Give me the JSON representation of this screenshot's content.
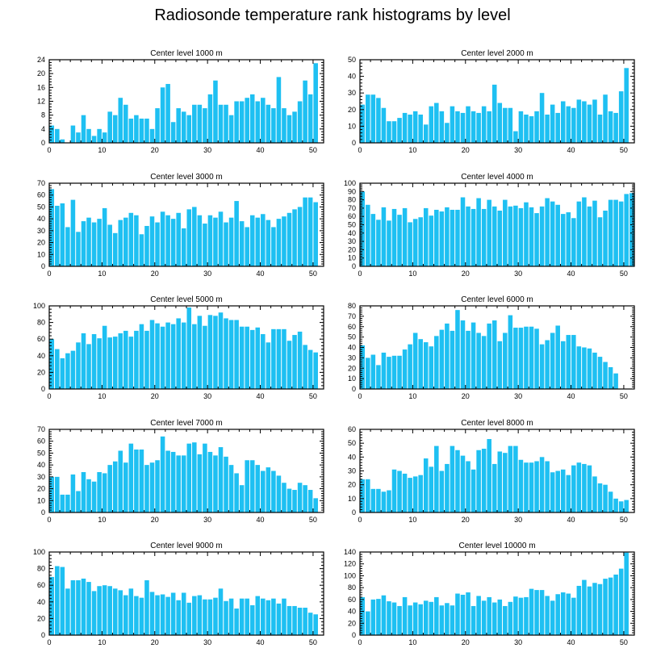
{
  "title": "Radiosonde temperature rank histograms by level",
  "colors": {
    "bar": "#1ec0f2",
    "bar_edge": "#ffffff",
    "axis": "#000000",
    "background": "#ffffff"
  },
  "chart_data": [
    {
      "type": "bar",
      "title": "Center level 1000 m",
      "xlim": [
        0,
        52
      ],
      "ylim": [
        0,
        24
      ],
      "xticks": [
        0,
        10,
        20,
        30,
        40,
        50
      ],
      "yticks": [
        0,
        4,
        8,
        12,
        16,
        20,
        24
      ],
      "values": [
        5,
        4,
        1,
        0,
        5,
        3,
        8,
        4,
        2,
        4,
        3,
        9,
        8,
        13,
        11,
        7,
        8,
        7,
        7,
        4,
        10,
        16,
        17,
        6,
        10,
        9,
        8,
        11,
        11,
        10,
        14,
        18,
        11,
        11,
        8,
        12,
        12,
        13,
        14,
        12,
        13,
        11,
        10,
        19,
        10,
        8,
        9,
        12,
        18,
        14,
        23,
        0
      ]
    },
    {
      "type": "bar",
      "title": "Center level 2000 m",
      "xlim": [
        0,
        52
      ],
      "ylim": [
        0,
        50
      ],
      "xticks": [
        0,
        10,
        20,
        30,
        40,
        50
      ],
      "yticks": [
        0,
        10,
        20,
        30,
        40,
        50
      ],
      "values": [
        23,
        29,
        29,
        27,
        21,
        13,
        13,
        15,
        18,
        17,
        19,
        17,
        11,
        22,
        24,
        19,
        12,
        22,
        19,
        18,
        22,
        19,
        18,
        22,
        19,
        35,
        24,
        21,
        21,
        7,
        19,
        17,
        16,
        19,
        30,
        17,
        23,
        18,
        25,
        22,
        21,
        26,
        25,
        23,
        26,
        17,
        29,
        19,
        18,
        31,
        45,
        0
      ]
    },
    {
      "type": "bar",
      "title": "Center level 3000 m",
      "xlim": [
        0,
        52
      ],
      "ylim": [
        0,
        70
      ],
      "xticks": [
        0,
        10,
        20,
        30,
        40,
        50
      ],
      "yticks": [
        0,
        10,
        20,
        30,
        40,
        50,
        60,
        70
      ],
      "values": [
        65,
        51,
        53,
        33,
        56,
        29,
        38,
        41,
        37,
        40,
        49,
        35,
        28,
        39,
        41,
        45,
        43,
        27,
        34,
        42,
        37,
        46,
        43,
        40,
        45,
        32,
        48,
        50,
        43,
        36,
        43,
        41,
        46,
        37,
        41,
        55,
        38,
        33,
        43,
        41,
        44,
        39,
        33,
        40,
        42,
        45,
        48,
        50,
        58,
        58,
        54,
        0
      ]
    },
    {
      "type": "bar",
      "title": "Center level 4000 m",
      "xlim": [
        0,
        52
      ],
      "ylim": [
        0,
        100
      ],
      "xticks": [
        0,
        10,
        20,
        30,
        40,
        50
      ],
      "yticks": [
        0,
        10,
        20,
        30,
        40,
        50,
        60,
        70,
        80,
        90,
        100
      ],
      "values": [
        90,
        74,
        63,
        56,
        71,
        55,
        69,
        62,
        70,
        53,
        57,
        59,
        70,
        61,
        68,
        66,
        71,
        68,
        68,
        83,
        72,
        69,
        82,
        69,
        80,
        72,
        67,
        80,
        72,
        73,
        70,
        77,
        71,
        64,
        72,
        82,
        78,
        74,
        63,
        65,
        58,
        78,
        83,
        72,
        79,
        59,
        67,
        80,
        80,
        78,
        87,
        88
      ]
    },
    {
      "type": "bar",
      "title": "Center level 5000 m",
      "xlim": [
        0,
        52
      ],
      "ylim": [
        0,
        100
      ],
      "xticks": [
        0,
        10,
        20,
        30,
        40,
        50
      ],
      "yticks": [
        0,
        20,
        40,
        60,
        80,
        100
      ],
      "values": [
        60,
        48,
        37,
        43,
        46,
        56,
        67,
        54,
        66,
        61,
        76,
        62,
        63,
        67,
        70,
        63,
        70,
        78,
        70,
        83,
        79,
        75,
        80,
        78,
        85,
        80,
        98,
        78,
        88,
        76,
        89,
        88,
        92,
        85,
        83,
        83,
        75,
        75,
        71,
        74,
        66,
        56,
        72,
        72,
        72,
        58,
        65,
        69,
        53,
        47,
        44,
        0
      ]
    },
    {
      "type": "bar",
      "title": "Center level 6000 m",
      "xlim": [
        0,
        52
      ],
      "ylim": [
        0,
        80
      ],
      "xticks": [
        0,
        10,
        20,
        30,
        40,
        50
      ],
      "yticks": [
        0,
        10,
        20,
        30,
        40,
        50,
        60,
        70,
        80
      ],
      "values": [
        42,
        30,
        33,
        23,
        35,
        31,
        32,
        32,
        38,
        43,
        54,
        48,
        45,
        41,
        51,
        57,
        63,
        56,
        76,
        66,
        56,
        64,
        54,
        51,
        63,
        66,
        46,
        54,
        71,
        59,
        59,
        60,
        60,
        58,
        43,
        47,
        54,
        61,
        46,
        52,
        52,
        41,
        40,
        39,
        35,
        31,
        26,
        21,
        15,
        0,
        0,
        0
      ]
    },
    {
      "type": "bar",
      "title": "Center level 7000 m",
      "xlim": [
        0,
        52
      ],
      "ylim": [
        0,
        70
      ],
      "xticks": [
        0,
        10,
        20,
        30,
        40,
        50
      ],
      "yticks": [
        0,
        10,
        20,
        30,
        40,
        50,
        60,
        70
      ],
      "values": [
        30,
        30,
        15,
        15,
        32,
        18,
        34,
        28,
        26,
        34,
        33,
        40,
        43,
        52,
        42,
        58,
        53,
        53,
        40,
        42,
        44,
        64,
        52,
        51,
        48,
        48,
        58,
        59,
        49,
        58,
        51,
        48,
        55,
        47,
        40,
        33,
        23,
        44,
        44,
        40,
        35,
        38,
        35,
        31,
        25,
        20,
        19,
        25,
        23,
        19,
        12,
        0
      ]
    },
    {
      "type": "bar",
      "title": "Center level 8000 m",
      "xlim": [
        0,
        52
      ],
      "ylim": [
        0,
        60
      ],
      "xticks": [
        0,
        10,
        20,
        30,
        40,
        50
      ],
      "yticks": [
        0,
        10,
        20,
        30,
        40,
        50,
        60
      ],
      "values": [
        24,
        24,
        17,
        17,
        15,
        16,
        31,
        30,
        28,
        25,
        26,
        27,
        39,
        33,
        48,
        30,
        35,
        48,
        45,
        41,
        37,
        31,
        45,
        46,
        53,
        35,
        44,
        43,
        48,
        48,
        38,
        36,
        36,
        37,
        40,
        37,
        29,
        30,
        31,
        27,
        34,
        36,
        35,
        34,
        26,
        21,
        20,
        15,
        10,
        8,
        9,
        0
      ]
    },
    {
      "type": "bar",
      "title": "Center level 9000 m",
      "xlim": [
        0,
        52
      ],
      "ylim": [
        0,
        100
      ],
      "xticks": [
        0,
        10,
        20,
        30,
        40,
        50
      ],
      "yticks": [
        0,
        20,
        40,
        60,
        80,
        100
      ],
      "values": [
        70,
        83,
        82,
        56,
        66,
        66,
        68,
        64,
        53,
        59,
        60,
        59,
        56,
        54,
        48,
        56,
        47,
        45,
        66,
        52,
        48,
        49,
        46,
        51,
        42,
        51,
        39,
        47,
        48,
        43,
        43,
        45,
        56,
        41,
        44,
        32,
        44,
        44,
        36,
        47,
        44,
        42,
        44,
        38,
        44,
        35,
        35,
        33,
        33,
        27,
        25,
        0
      ]
    },
    {
      "type": "bar",
      "title": "Center level 10000 m",
      "xlim": [
        0,
        52
      ],
      "ylim": [
        0,
        140
      ],
      "xticks": [
        0,
        10,
        20,
        30,
        40,
        50
      ],
      "yticks": [
        0,
        20,
        40,
        60,
        80,
        100,
        120,
        140
      ],
      "values": [
        64,
        40,
        60,
        61,
        67,
        57,
        55,
        49,
        64,
        50,
        55,
        52,
        58,
        56,
        64,
        50,
        54,
        50,
        70,
        68,
        72,
        49,
        66,
        58,
        64,
        55,
        60,
        49,
        56,
        65,
        63,
        64,
        78,
        76,
        76,
        66,
        58,
        69,
        72,
        70,
        63,
        83,
        93,
        82,
        88,
        86,
        95,
        97,
        102,
        112,
        139,
        0
      ]
    }
  ]
}
